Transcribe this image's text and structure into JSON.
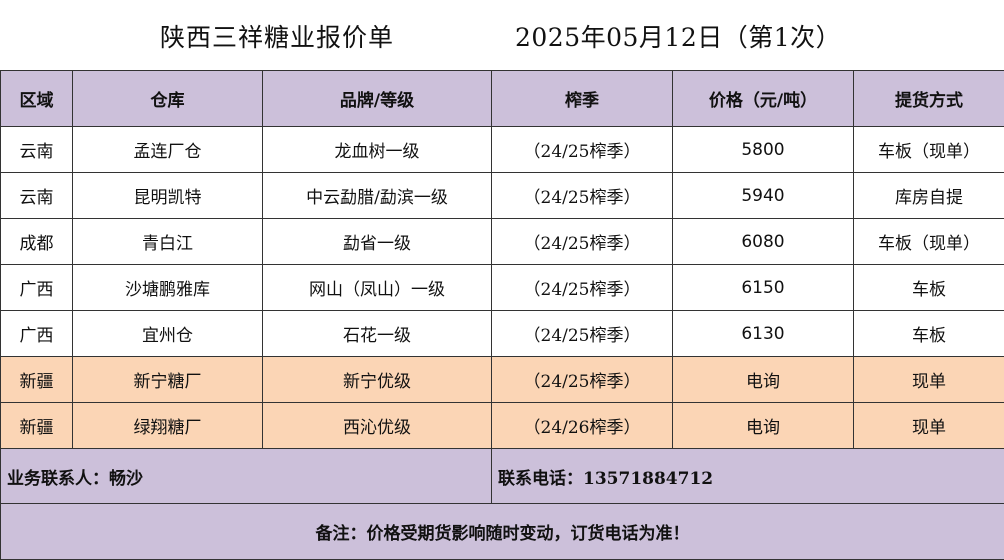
{
  "title": {
    "company": "陕西三祥糖业报价单",
    "date": "2025年05月12日（第1次）"
  },
  "table": {
    "headers": [
      "区域",
      "仓库",
      "品牌/等级",
      "榨季",
      "价格（元/吨）",
      "提货方式"
    ],
    "rows": [
      {
        "region": "云南",
        "warehouse": "孟连厂仓",
        "brand": "龙血树一级",
        "season": "（24/25榨季）",
        "price": "5800",
        "delivery": "车板（现单）",
        "highlight": false
      },
      {
        "region": "云南",
        "warehouse": "昆明凯特",
        "brand": "中云勐腊/勐滨一级",
        "season": "（24/25榨季）",
        "price": "5940",
        "delivery": "库房自提",
        "highlight": false
      },
      {
        "region": "成都",
        "warehouse": "青白江",
        "brand": "勐省一级",
        "season": "（24/25榨季）",
        "price": "6080",
        "delivery": "车板（现单）",
        "highlight": false
      },
      {
        "region": "广西",
        "warehouse": "沙塘鹏雅库",
        "brand": "网山（凤山）一级",
        "season": "（24/25榨季）",
        "price": "6150",
        "delivery": "车板",
        "highlight": false
      },
      {
        "region": "广西",
        "warehouse": "宜州仓",
        "brand": "石花一级",
        "season": "（24/25榨季）",
        "price": "6130",
        "delivery": "车板",
        "highlight": false
      },
      {
        "region": "新疆",
        "warehouse": "新宁糖厂",
        "brand": "新宁优级",
        "season": "（24/25榨季）",
        "price": "电询",
        "delivery": "现单",
        "highlight": true
      },
      {
        "region": "新疆",
        "warehouse": "绿翔糖厂",
        "brand": "西沁优级",
        "season": "（24/26榨季）",
        "price": "电询",
        "delivery": "现单",
        "highlight": true
      }
    ]
  },
  "contact": {
    "person": "业务联系人：畅沙",
    "phone": "联系电话：13571884712"
  },
  "note": "备注：价格受期货影响随时变动，订货电话为准！"
}
